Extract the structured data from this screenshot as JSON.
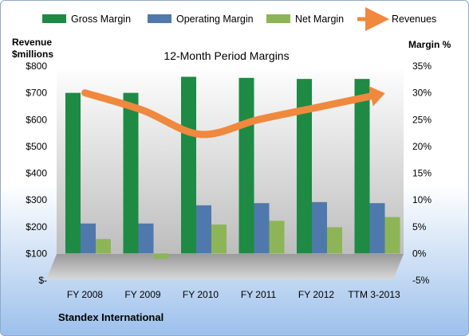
{
  "chart_data": {
    "type": "bar",
    "title": "12-Month Period Margins",
    "company": "Standex International",
    "categories": [
      "FY 2008",
      "FY 2009",
      "FY 2010",
      "FY 2011",
      "FY 2012",
      "TTM 3-2013"
    ],
    "series": [
      {
        "name": "Gross Margin",
        "axis": "right",
        "color": "#1e8a44",
        "values": [
          30.0,
          30.0,
          33.0,
          32.8,
          32.6,
          32.6
        ]
      },
      {
        "name": "Operating Margin",
        "axis": "right",
        "color": "#4f79ad",
        "values": [
          5.6,
          5.6,
          9.0,
          9.4,
          9.6,
          9.4
        ]
      },
      {
        "name": "Net Margin",
        "axis": "right",
        "color": "#8db557",
        "values": [
          2.7,
          -1.0,
          5.4,
          6.1,
          4.9,
          6.8
        ]
      },
      {
        "name": "Revenues",
        "axis": "left",
        "type": "line",
        "color": "#f0883e",
        "values": [
          700,
          635,
          545,
          600,
          645,
          690
        ]
      }
    ],
    "left_axis": {
      "title_line1": "Revenue",
      "title_line2": "$millions",
      "min": 0,
      "max": 800,
      "step": 100,
      "tick_labels": [
        "$-",
        "$100",
        "$200",
        "$300",
        "$400",
        "$500",
        "$600",
        "$700",
        "$800"
      ]
    },
    "right_axis": {
      "title": "Margin %",
      "min": -5,
      "max": 35,
      "step": 5,
      "tick_labels": [
        "-5%",
        "0%",
        "5%",
        "10%",
        "15%",
        "20%",
        "25%",
        "30%",
        "35%"
      ]
    },
    "legend_position": "top",
    "grid": false,
    "plot_background": "#c8c8c8"
  }
}
